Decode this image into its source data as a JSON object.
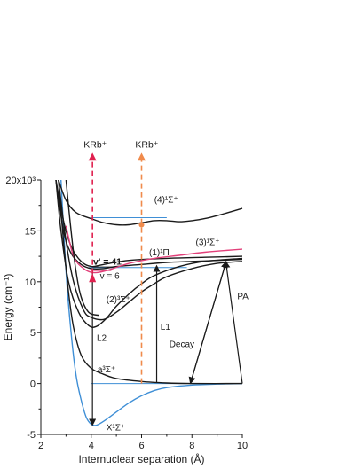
{
  "chart_data": {
    "type": "line",
    "xlabel": "Internuclear separation (Å)",
    "ylabel": "Energy (cm⁻¹)",
    "y_exponent": "x10³",
    "xlim": [
      2,
      10
    ],
    "ylim": [
      -5,
      20
    ],
    "xticks": [
      2,
      4,
      6,
      8,
      10
    ],
    "yticks": [
      -5,
      0,
      5,
      10,
      15,
      20
    ],
    "ytick_labels": [
      "-5",
      "0",
      "5",
      "10",
      "15",
      "20x10³"
    ],
    "grid": false,
    "colors": {
      "black": "#1a1a1a",
      "blue": "#3f8fd6",
      "pink": "#e2407a",
      "red_arrow": "#e0214f",
      "orange_arrow": "#f08a4b"
    },
    "series": [
      {
        "label": "X¹Σ⁺",
        "color": "blue",
        "points": [
          [
            2.8,
            20
          ],
          [
            3,
            11
          ],
          [
            3.2,
            5
          ],
          [
            3.4,
            0.8
          ],
          [
            3.6,
            -1.6
          ],
          [
            3.8,
            -3.3
          ],
          [
            4.0,
            -4.0
          ],
          [
            4.2,
            -4.1
          ],
          [
            4.5,
            -3.7
          ],
          [
            5.0,
            -2.8
          ],
          [
            5.5,
            -1.9
          ],
          [
            6.0,
            -1.2
          ],
          [
            6.5,
            -0.7
          ],
          [
            7.0,
            -0.4
          ],
          [
            8.0,
            -0.15
          ],
          [
            9.0,
            -0.05
          ],
          [
            10,
            0
          ]
        ]
      },
      {
        "label": "a³Σ⁺",
        "color": "black",
        "points": [
          [
            2.7,
            20
          ],
          [
            2.9,
            14
          ],
          [
            3.1,
            9
          ],
          [
            3.3,
            5.5
          ],
          [
            3.6,
            2.8
          ],
          [
            4.0,
            1.5
          ],
          [
            4.5,
            0.9
          ],
          [
            5.0,
            0.5
          ],
          [
            6.0,
            0.2
          ],
          [
            7.0,
            0.05
          ],
          [
            8.0,
            0
          ],
          [
            10,
            0
          ]
        ]
      },
      {
        "label": "(2)³Σ⁺",
        "color": "black",
        "points": [
          [
            2.7,
            20
          ],
          [
            3.0,
            14
          ],
          [
            3.3,
            10
          ],
          [
            3.7,
            7.2
          ],
          [
            4.0,
            6.5
          ],
          [
            4.5,
            6.3
          ],
          [
            5.0,
            7.0
          ],
          [
            5.5,
            8.0
          ],
          [
            6.0,
            9.0
          ],
          [
            6.5,
            9.8
          ],
          [
            7.0,
            10.5
          ],
          [
            8.0,
            11.3
          ],
          [
            9.0,
            11.8
          ],
          [
            10,
            12.0
          ]
        ]
      },
      {
        "label": "",
        "color": "black",
        "points": [
          [
            2.6,
            20
          ],
          [
            2.8,
            15
          ],
          [
            3.1,
            10
          ],
          [
            3.5,
            7
          ],
          [
            3.9,
            5.7
          ],
          [
            4.2,
            5.6
          ],
          [
            4.6,
            6.4
          ],
          [
            5.0,
            7.6
          ],
          [
            5.5,
            8.8
          ],
          [
            6.0,
            9.8
          ],
          [
            6.5,
            10.6
          ],
          [
            7.5,
            11.5
          ],
          [
            8.5,
            12.0
          ],
          [
            10,
            12.3
          ]
        ]
      },
      {
        "label": "(1)¹Π",
        "color": "black",
        "points": [
          [
            2.6,
            20
          ],
          [
            2.9,
            15
          ],
          [
            3.2,
            12.8
          ],
          [
            3.6,
            11.7
          ],
          [
            4.0,
            11.3
          ],
          [
            4.5,
            11.3
          ],
          [
            5.0,
            11.5
          ],
          [
            6.0,
            11.7
          ],
          [
            7.0,
            11.9
          ],
          [
            8.0,
            12.0
          ],
          [
            9.0,
            12.1
          ],
          [
            10,
            12.2
          ]
        ]
      },
      {
        "label": "",
        "color": "black",
        "points": [
          [
            2.6,
            20
          ],
          [
            2.9,
            16
          ],
          [
            3.2,
            13.5
          ],
          [
            3.6,
            12
          ],
          [
            4.0,
            11.5
          ],
          [
            4.5,
            11.7
          ],
          [
            5.5,
            12.1
          ],
          [
            7.0,
            12.3
          ],
          [
            8.5,
            12.4
          ],
          [
            10,
            12.5
          ]
        ]
      },
      {
        "label": "(3)¹Σ⁺",
        "color": "pink",
        "points": [
          [
            3.0,
            15.5
          ],
          [
            3.3,
            12.5
          ],
          [
            3.7,
            11.3
          ],
          [
            4.1,
            10.9
          ],
          [
            4.6,
            11.1
          ],
          [
            5.5,
            11.8
          ],
          [
            6.5,
            12.3
          ],
          [
            7.5,
            12.6
          ],
          [
            8.5,
            12.9
          ],
          [
            10,
            13.2
          ]
        ]
      },
      {
        "label": "(4)¹Σ⁺",
        "color": "black",
        "points": [
          [
            2.7,
            20
          ],
          [
            3.0,
            18
          ],
          [
            3.4,
            16.8
          ],
          [
            4.0,
            16.2
          ],
          [
            4.5,
            15.8
          ],
          [
            5.0,
            15.6
          ],
          [
            5.5,
            15.6
          ],
          [
            6.0,
            15.8
          ],
          [
            6.5,
            16.0
          ],
          [
            7.0,
            16.0
          ],
          [
            7.5,
            15.9
          ],
          [
            8.0,
            16.0
          ],
          [
            8.5,
            16.2
          ],
          [
            9.0,
            16.5
          ],
          [
            10,
            17.2
          ]
        ]
      },
      {
        "label": "",
        "color": "black",
        "points": [
          [
            3.0,
            20
          ],
          [
            3.2,
            15
          ],
          [
            3.4,
            11
          ],
          [
            3.6,
            8.5
          ],
          [
            3.9,
            7
          ],
          [
            4.3,
            6.7
          ]
        ]
      }
    ],
    "vibrational_levels": [
      {
        "y": 16.3,
        "x": [
          4.0,
          7.0
        ],
        "color": "blue"
      },
      {
        "y": 11.4,
        "x": [
          3.9,
          7.8
        ],
        "color": "blue"
      },
      {
        "y": 11.1,
        "x": [
          4.0,
          4.8
        ],
        "color": "pink"
      },
      {
        "y": 11.45,
        "x": [
          4.05,
          4.85
        ],
        "color": "black"
      },
      {
        "y": 0,
        "x": [
          4.0,
          10.0
        ],
        "color": "blue"
      }
    ],
    "arrows": [
      {
        "name": "L2",
        "label": "L2",
        "from": [
          4.05,
          11.0
        ],
        "to": [
          4.05,
          -4.0
        ],
        "color": "black"
      },
      {
        "name": "L1",
        "label": "L1",
        "from": [
          6.6,
          0.05
        ],
        "to": [
          6.6,
          11.5
        ],
        "color": "black"
      },
      {
        "name": "PA",
        "label": "PA",
        "from": [
          10.0,
          0.0
        ],
        "to": [
          9.35,
          11.9
        ],
        "color": "black"
      },
      {
        "name": "Decay",
        "label": "Decay",
        "from": [
          9.35,
          11.9
        ],
        "to": [
          7.95,
          0.1
        ],
        "color": "black"
      },
      {
        "name": "KRb-ion-red",
        "label": "KRb⁺",
        "from": [
          4.05,
          10.8
        ],
        "to": [
          4.05,
          22.5
        ],
        "color": "red_arrow",
        "dashed": true
      },
      {
        "name": "KRb-ion-orange",
        "label": "KRb⁺",
        "from": [
          6.0,
          0.0
        ],
        "to": [
          6.0,
          22.5
        ],
        "color": "orange_arrow",
        "dashed": true
      }
    ],
    "annotations": [
      {
        "name": "label-4-sigma",
        "text": "(4)¹Σ⁺",
        "at": [
          6.5,
          17.8
        ]
      },
      {
        "name": "label-3-sigma",
        "text": "(3)¹Σ⁺",
        "at": [
          8.15,
          13.6
        ]
      },
      {
        "name": "label-1-pi",
        "text": "(1)¹Π",
        "at": [
          6.3,
          12.6
        ]
      },
      {
        "name": "label-v41",
        "text": "v' = 41",
        "at": [
          4.08,
          11.7
        ]
      },
      {
        "name": "label-v6",
        "text": "v = 6",
        "at": [
          4.35,
          10.3
        ]
      },
      {
        "name": "label-2-3sigma",
        "text": "(2)³Σ⁺",
        "at": [
          4.6,
          8.0
        ]
      },
      {
        "name": "label-a3sigma",
        "text": "a³Σ⁺",
        "at": [
          4.25,
          1.1
        ]
      },
      {
        "name": "label-X1sigma",
        "text": "X¹Σ⁺",
        "at": [
          4.6,
          -4.6
        ]
      },
      {
        "name": "label-L2",
        "text": "L2",
        "at": [
          4.22,
          4.2
        ]
      },
      {
        "name": "label-L1",
        "text": "L1",
        "at": [
          6.75,
          5.3
        ]
      },
      {
        "name": "label-decay",
        "text": "Decay",
        "at": [
          7.1,
          3.6
        ]
      },
      {
        "name": "label-pa",
        "text": "PA",
        "at": [
          9.8,
          8.3
        ]
      },
      {
        "name": "label-krb-red",
        "text": "KRb⁺",
        "at": [
          3.7,
          23.2
        ]
      },
      {
        "name": "label-krb-orange",
        "text": "KRb⁺",
        "at": [
          5.75,
          23.2
        ]
      }
    ]
  }
}
